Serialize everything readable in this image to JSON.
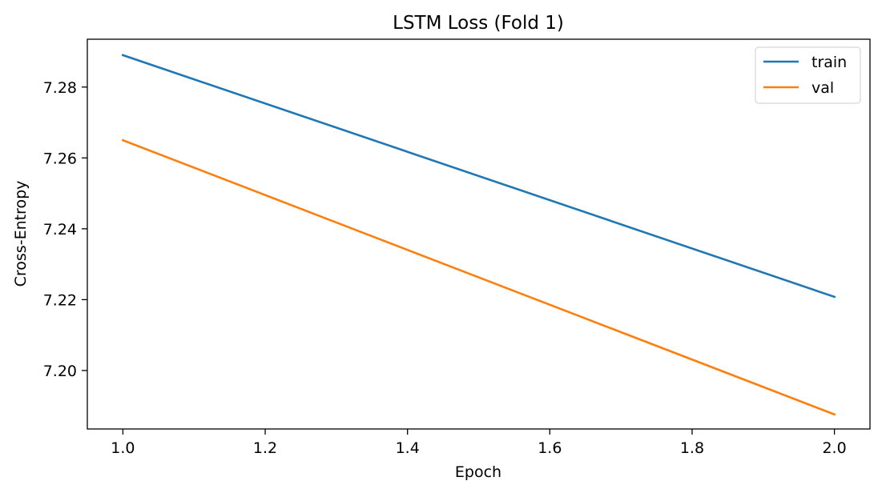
{
  "chart_data": {
    "type": "line",
    "title": "LSTM Loss (Fold 1)",
    "xlabel": "Epoch",
    "ylabel": "Cross-Entropy",
    "xlim": [
      0.95,
      2.05
    ],
    "ylim": [
      7.1835,
      7.2935
    ],
    "xticks": [
      1.0,
      1.2,
      1.4,
      1.6,
      1.8,
      2.0
    ],
    "xtick_labels": [
      "1.0",
      "1.2",
      "1.4",
      "1.6",
      "1.8",
      "2.0"
    ],
    "yticks": [
      7.2,
      7.22,
      7.24,
      7.26,
      7.28
    ],
    "ytick_labels": [
      "7.20",
      "7.22",
      "7.24",
      "7.26",
      "7.28"
    ],
    "grid": false,
    "legend_position": "top-right",
    "series": [
      {
        "name": "train",
        "color": "#1f77b4",
        "x": [
          1.0,
          2.0
        ],
        "y": [
          7.289,
          7.2208
        ]
      },
      {
        "name": "val",
        "color": "#ff7f0e",
        "x": [
          1.0,
          2.0
        ],
        "y": [
          7.265,
          7.1876
        ]
      }
    ]
  }
}
